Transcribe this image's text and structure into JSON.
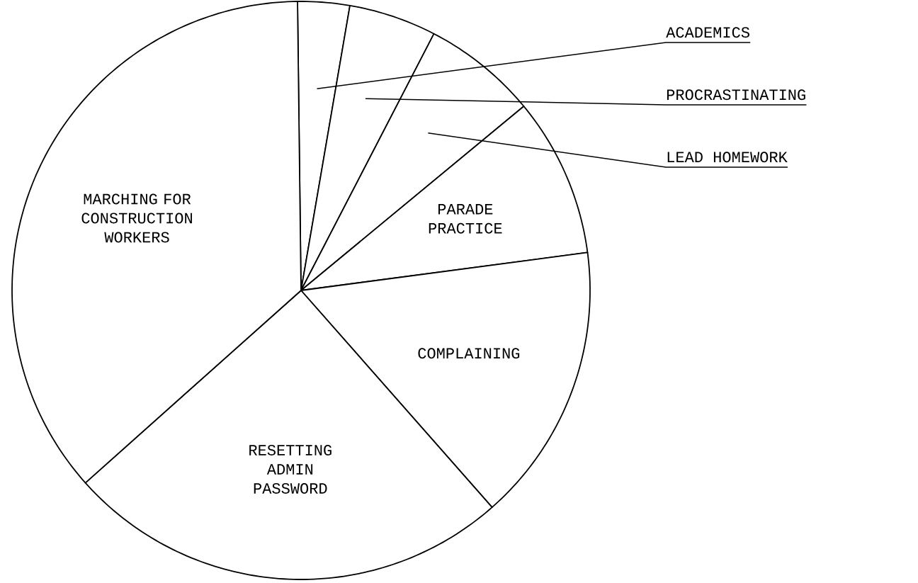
{
  "chart_data": {
    "type": "pie",
    "categories": [
      "ACADEMICS",
      "PROCRASTINATING",
      "LEAD HOMEWORK",
      "PARADE PRACTICE",
      "COMPLAINING",
      "RESETTING ADMIN PASSWORD",
      "MARCHING FOR CONSTRUCTION WORKERS"
    ],
    "values": [
      2.9,
      4.9,
      6.4,
      8.9,
      15.6,
      24.9,
      36.4
    ],
    "colors": [
      "#ffffff",
      "#ffffff",
      "#ffffff",
      "#ffffff",
      "#ffffff",
      "#ffffff",
      "#ffffff"
    ]
  }
}
